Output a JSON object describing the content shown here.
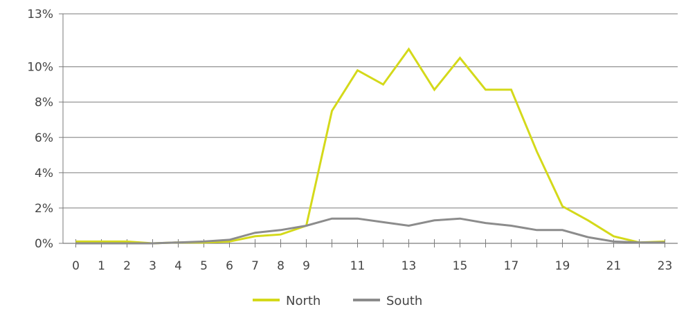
{
  "chart_data": {
    "type": "line",
    "title": "",
    "xlabel": "",
    "ylabel": "",
    "x": [
      0,
      1,
      2,
      3,
      4,
      5,
      6,
      7,
      8,
      9,
      10,
      11,
      12,
      13,
      14,
      15,
      16,
      17,
      18,
      19,
      20,
      21,
      22,
      23
    ],
    "x_tick_labels": [
      "0",
      "1",
      "2",
      "3",
      "4",
      "5",
      "6",
      "7",
      "8",
      "9",
      "11",
      "13",
      "15",
      "17",
      "19",
      "21",
      "23"
    ],
    "y_ticks": [
      0,
      2,
      4,
      6,
      8,
      10,
      13
    ],
    "y_tick_labels": [
      "0%",
      "2%",
      "4%",
      "6%",
      "8%",
      "10%",
      "13%"
    ],
    "ylim": [
      0,
      13
    ],
    "xlim": [
      -0.5,
      23.5
    ],
    "grid": "horizontal",
    "legend_position": "bottom",
    "series": [
      {
        "name": "North",
        "color": "#d4d91a",
        "values": [
          0.1,
          0.1,
          0.1,
          0.0,
          0.05,
          0.05,
          0.1,
          0.4,
          0.5,
          1.0,
          7.5,
          9.8,
          9.0,
          11.0,
          8.7,
          10.5,
          8.7,
          8.7,
          5.2,
          2.1,
          1.3,
          0.4,
          0.05,
          0.1
        ]
      },
      {
        "name": "South",
        "color": "#8c8c8c",
        "values": [
          0.0,
          0.0,
          0.0,
          0.0,
          0.05,
          0.1,
          0.2,
          0.6,
          0.75,
          1.0,
          1.4,
          1.4,
          1.2,
          1.0,
          1.3,
          1.4,
          1.15,
          1.0,
          0.75,
          0.75,
          0.35,
          0.1,
          0.05,
          0.05
        ]
      }
    ]
  }
}
